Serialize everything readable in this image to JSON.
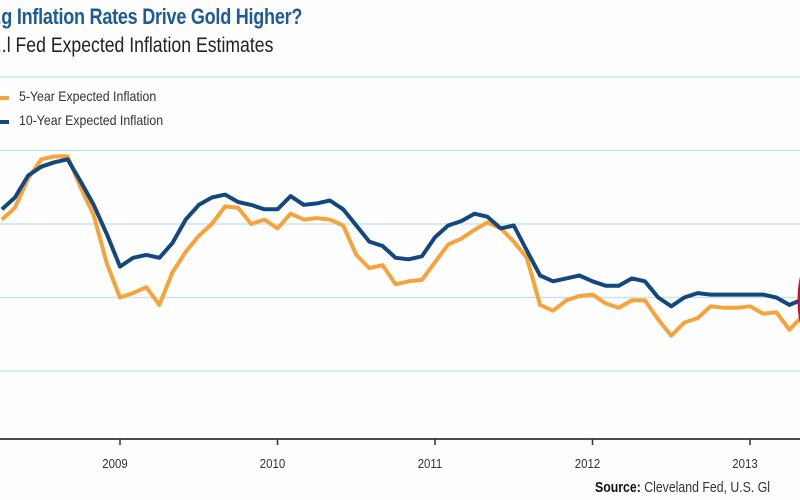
{
  "colors": {
    "title": "#1f5a98",
    "series_5yr": "#f7a33a",
    "series_10yr": "#12477f",
    "gridline": "#c7e3f1",
    "axis": "#111111",
    "highlight_ellipse": "#c8102e"
  },
  "chart_data": {
    "type": "line",
    "title": "...g Inflation Rates Drive Gold Higher?",
    "subtitle": "...l Fed Expected Inflation Estimates",
    "xlabel": "",
    "ylabel": "",
    "x_tick_labels": [
      "2009",
      "2010",
      "2011",
      "2012",
      "2013"
    ],
    "x_ticks": [
      2009,
      2010,
      2011,
      2012,
      2013
    ],
    "xlim": [
      2008.24,
      2013.32
    ],
    "ylim_estimated": [
      0.5,
      3.0
    ],
    "y_gridlines_estimated": [
      1.0,
      1.5,
      2.0,
      2.5,
      3.0
    ],
    "y_tick_labels_visible": false,
    "grid": "horizontal",
    "legend": {
      "position": "top-left",
      "entries": [
        "5-Year Expected Inflation",
        "10-Year Expected Inflation"
      ]
    },
    "annotation": "red ellipse highlighting the most recent data points (right edge, 2013)",
    "x": [
      2008.25,
      2008.333,
      2008.417,
      2008.5,
      2008.583,
      2008.667,
      2008.75,
      2008.833,
      2008.917,
      2009.0,
      2009.083,
      2009.167,
      2009.25,
      2009.333,
      2009.417,
      2009.5,
      2009.583,
      2009.667,
      2009.75,
      2009.833,
      2009.917,
      2010.0,
      2010.083,
      2010.167,
      2010.25,
      2010.333,
      2010.417,
      2010.5,
      2010.583,
      2010.667,
      2010.75,
      2010.833,
      2010.917,
      2011.0,
      2011.083,
      2011.167,
      2011.25,
      2011.333,
      2011.417,
      2011.5,
      2011.583,
      2011.667,
      2011.75,
      2011.833,
      2011.917,
      2012.0,
      2012.083,
      2012.167,
      2012.25,
      2012.333,
      2012.417,
      2012.5,
      2012.583,
      2012.667,
      2012.75,
      2012.833,
      2012.917,
      2013.0,
      2013.083,
      2013.167,
      2013.25,
      2013.32
    ],
    "series": [
      {
        "name": "5-Year Expected Inflation",
        "color": "#f7a33a",
        "values": [
          2.03,
          2.11,
          2.31,
          2.44,
          2.46,
          2.46,
          2.25,
          2.06,
          1.73,
          1.5,
          1.53,
          1.57,
          1.45,
          1.67,
          1.81,
          1.92,
          2.0,
          2.12,
          2.11,
          2.0,
          2.03,
          1.97,
          2.07,
          2.03,
          2.04,
          2.03,
          1.99,
          1.79,
          1.7,
          1.72,
          1.59,
          1.61,
          1.62,
          1.74,
          1.86,
          1.9,
          1.96,
          2.01,
          1.97,
          1.88,
          1.77,
          1.45,
          1.41,
          1.48,
          1.51,
          1.52,
          1.46,
          1.43,
          1.48,
          1.48,
          1.35,
          1.24,
          1.33,
          1.36,
          1.44,
          1.43,
          1.43,
          1.44,
          1.39,
          1.4,
          1.28,
          1.36
        ]
      },
      {
        "name": "10-Year Expected Inflation",
        "color": "#12477f",
        "values": [
          2.1,
          2.18,
          2.33,
          2.39,
          2.42,
          2.44,
          2.29,
          2.13,
          1.93,
          1.71,
          1.77,
          1.79,
          1.77,
          1.87,
          2.03,
          2.13,
          2.18,
          2.2,
          2.15,
          2.13,
          2.1,
          2.1,
          2.19,
          2.13,
          2.14,
          2.16,
          2.1,
          1.99,
          1.88,
          1.85,
          1.77,
          1.76,
          1.78,
          1.91,
          1.99,
          2.02,
          2.07,
          2.05,
          1.97,
          1.99,
          1.82,
          1.65,
          1.61,
          1.63,
          1.65,
          1.61,
          1.58,
          1.58,
          1.63,
          1.61,
          1.5,
          1.44,
          1.5,
          1.53,
          1.52,
          1.52,
          1.52,
          1.52,
          1.52,
          1.5,
          1.45,
          1.48
        ]
      }
    ]
  },
  "source": {
    "label": "Source:",
    "text": " Cleveland Fed, U.S. Gl"
  }
}
